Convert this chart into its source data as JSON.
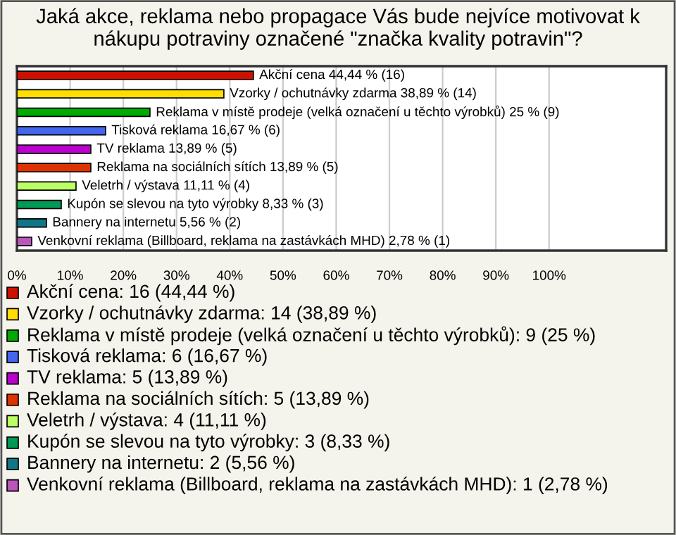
{
  "chart_data": {
    "type": "bar",
    "orientation": "horizontal",
    "title": "Jaká akce, reklama nebo propagace Vás bude nejvíce motivovat k nákupu potraviny označené \"značka kvality potravin\"?",
    "categories": [
      null,
      null,
      null,
      null,
      null,
      null,
      null,
      null,
      null,
      null
    ],
    "values": [
      44.44,
      38.89,
      25,
      16.67,
      13.89,
      13.89,
      11.11,
      8.33,
      5.56,
      2.78
    ],
    "colors": [
      "#cc1100",
      "#ffdd00",
      "#00aa00",
      "#4466ee",
      "#bb00cc",
      "#dd3300",
      "#bbff66",
      "#009955",
      "#117788",
      "#bb55bb"
    ],
    "value_labels": [
      "Akční cena 44,44 % (16)",
      "Vzorky / ochutnávky zdarma 38,89 % (14)",
      "Reklama v místě prodeje (velká označení u těchto výrobků) 25 % (9)",
      "Tisková reklama 16,67 % (6)",
      "TV reklama 13,89 % (5)",
      "Reklama na sociálních sítích 13,89 % (5)",
      "Veletrh / výstava 11,11 % (4)",
      "Kupón se slevou na tyto výrobky 8,33 % (3)",
      "Bannery na internetu 5,56 % (2)",
      "Venkovní reklama (Billboard, reklama na zastávkách MHD) 2,78 % (1)"
    ],
    "annotations": [
      "Akční cena: 16 (44,44 %)",
      "Vzorky / ochutnávky zdarma: 14 (38,89 %)",
      "Reklama v místě prodeje (velká označení u těchto výrobků): 9 (25 %)",
      "Tisková reklama: 6 (16,67 %)",
      "TV reklama: 5 (13,89 %)",
      "Reklama na sociálních sítích: 5 (13,89 %)",
      "Veletrh / výstava: 4 (11,11 %)",
      "Kupón se slevou na tyto výrobky: 3 (8,33 %)",
      "Bannery na internetu: 2 (5,56 %)",
      "Venkovní reklama (Billboard, reklama na zastávkách MHD): 1 (2,78 %)"
    ],
    "xlim": [
      0,
      122
    ],
    "xticks": [
      {
        "value": 0,
        "label": "0%"
      },
      {
        "value": 10,
        "label": "10%"
      },
      {
        "value": 20,
        "label": "20%"
      },
      {
        "value": 30,
        "label": "30%"
      },
      {
        "value": 40,
        "label": "40%"
      },
      {
        "value": 50,
        "label": "50%"
      },
      {
        "value": 60,
        "label": "60%"
      },
      {
        "value": 70,
        "label": "70%"
      },
      {
        "value": 80,
        "label": "80%"
      },
      {
        "value": 90,
        "label": "90%"
      },
      {
        "value": 100,
        "label": "100%"
      }
    ],
    "grid": "x",
    "legend": false
  }
}
